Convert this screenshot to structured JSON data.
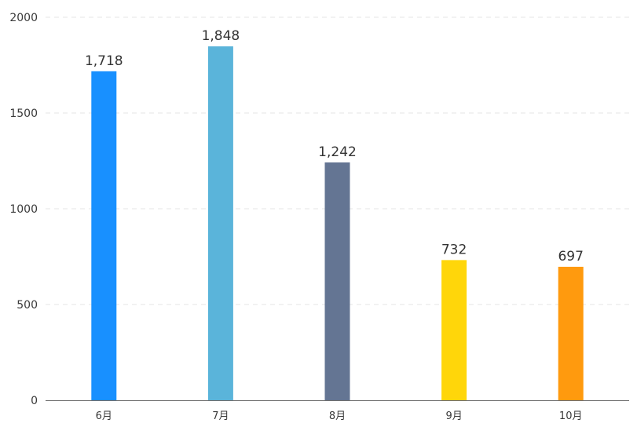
{
  "chart_data": {
    "type": "bar",
    "categories": [
      "6月",
      "7月",
      "8月",
      "9月",
      "10月"
    ],
    "values": [
      1718,
      1848,
      1242,
      732,
      697
    ],
    "value_labels": [
      "1,718",
      "1,848",
      "1,242",
      "732",
      "697"
    ],
    "colors": [
      "#1890ff",
      "#5ab4da",
      "#647593",
      "#ffd60a",
      "#ff9a0e"
    ],
    "ylim": [
      0,
      2000
    ],
    "yticks": [
      0,
      500,
      1000,
      1500,
      2000
    ],
    "ytick_labels": [
      "0",
      "500",
      "1000",
      "1500",
      "2000"
    ],
    "grid": true,
    "legend": "none",
    "title": "",
    "xlabel": "",
    "ylabel": ""
  }
}
